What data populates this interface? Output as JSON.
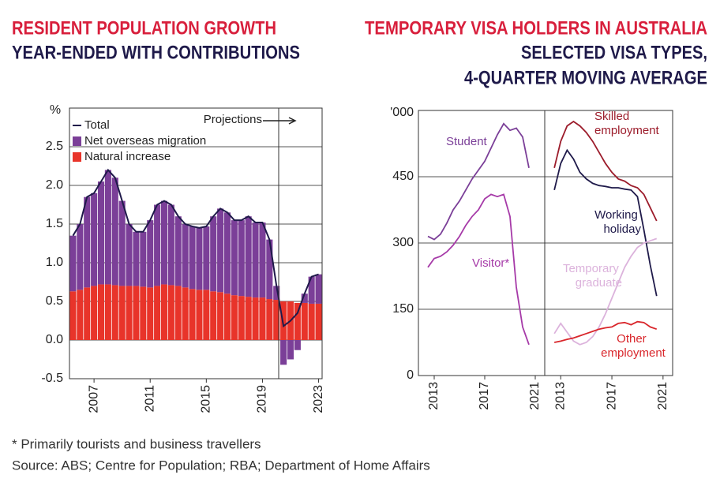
{
  "chart_data": [
    {
      "type": "bar",
      "stacked": true,
      "title": "RESIDENT POPULATION GROWTH",
      "subtitle": "YEAR-ENDED WITH CONTRIBUTIONS",
      "ylabel": "%",
      "annotation": "Projections",
      "legend": "upper left",
      "grid": true,
      "categories": [
        null,
        null,
        null,
        "2007",
        null,
        null,
        null,
        null,
        null,
        null,
        null,
        "2011",
        null,
        null,
        null,
        null,
        null,
        null,
        null,
        "2015",
        null,
        null,
        null,
        null,
        null,
        null,
        null,
        "2019",
        null,
        null,
        null,
        null,
        null,
        null,
        null,
        "2023"
      ],
      "ylim": [
        -0.5,
        3.0
      ],
      "yticks": [
        -0.5,
        {
          "value": 0,
          "label": "0.0"
        },
        0.5,
        {
          "value": 1,
          "label": "1.0"
        },
        1.5,
        {
          "value": 2,
          "label": "2.0"
        },
        2.5
      ],
      "series": [
        {
          "name": "Total",
          "type": "line",
          "color": "#1f1a4a",
          "values": [
            1.35,
            1.5,
            1.85,
            1.9,
            2.05,
            2.2,
            2.1,
            1.8,
            1.5,
            1.4,
            1.4,
            1.55,
            1.75,
            1.8,
            1.75,
            1.6,
            1.5,
            1.47,
            1.45,
            1.47,
            1.6,
            1.7,
            1.65,
            1.55,
            1.55,
            1.6,
            1.52,
            1.52,
            1.3,
            0.7,
            0.18,
            0.25,
            0.35,
            0.6,
            0.82,
            0.85
          ]
        },
        {
          "name": "Net overseas migration",
          "type": "bar",
          "color": "#7b3f98",
          "values": [
            0.72,
            0.85,
            1.17,
            1.2,
            1.33,
            1.48,
            1.39,
            1.1,
            0.8,
            0.7,
            0.71,
            0.87,
            1.05,
            1.08,
            1.04,
            0.9,
            0.82,
            0.81,
            0.8,
            0.82,
            0.97,
            1.08,
            1.05,
            0.97,
            0.98,
            1.04,
            0.97,
            0.97,
            0.77,
            0.18,
            -0.32,
            -0.25,
            -0.13,
            0.12,
            0.35,
            0.38
          ]
        },
        {
          "name": "Natural increase",
          "type": "bar",
          "color": "#e8342a",
          "values": [
            0.63,
            0.65,
            0.68,
            0.7,
            0.72,
            0.72,
            0.71,
            0.7,
            0.7,
            0.7,
            0.69,
            0.68,
            0.7,
            0.72,
            0.71,
            0.7,
            0.68,
            0.66,
            0.65,
            0.65,
            0.63,
            0.62,
            0.6,
            0.58,
            0.57,
            0.56,
            0.55,
            0.55,
            0.53,
            0.52,
            0.5,
            0.5,
            0.48,
            0.48,
            0.47,
            0.47
          ]
        }
      ]
    },
    {
      "type": "line",
      "panels": 2,
      "title": "TEMPORARY VISA HOLDERS IN AUSTRALIA",
      "subtitle": [
        "SELECTED VISA TYPES,",
        "4-QUARTER MOVING AVERAGE"
      ],
      "ylabel": "'000",
      "grid": true,
      "x": [
        2012.5,
        2013,
        2013.5,
        2014,
        2014.5,
        2015,
        2015.5,
        2016,
        2016.5,
        2017,
        2017.5,
        2018,
        2018.5,
        2019,
        2019.5,
        2020,
        2020.5
      ],
      "xlim": [
        2011.75,
        2021.75
      ],
      "xticks": [
        2013,
        2017,
        2021
      ],
      "ylim": [
        0,
        600
      ],
      "yticks": [
        0,
        150,
        300,
        450
      ],
      "series": [
        {
          "name": "Student",
          "panel": 0,
          "color": "#7b3f98",
          "values": [
            315,
            308,
            320,
            345,
            375,
            395,
            420,
            445,
            465,
            485,
            515,
            545,
            570,
            555,
            560,
            540,
            470
          ]
        },
        {
          "name": "Visitor*",
          "panel": 0,
          "color": "#a63aa8",
          "values": [
            245,
            265,
            270,
            280,
            295,
            315,
            340,
            360,
            375,
            400,
            410,
            405,
            410,
            360,
            200,
            110,
            70
          ]
        },
        {
          "name": "Skilled employment",
          "panel": 1,
          "color": "#9c1c2b",
          "values": [
            470,
            530,
            565,
            575,
            565,
            550,
            530,
            505,
            480,
            460,
            445,
            440,
            430,
            425,
            410,
            380,
            350
          ]
        },
        {
          "name": "Working holiday",
          "panel": 1,
          "color": "#1f1a4a",
          "values": [
            420,
            480,
            510,
            490,
            460,
            445,
            435,
            430,
            428,
            425,
            425,
            422,
            420,
            405,
            330,
            250,
            180
          ]
        },
        {
          "name": "Temporary graduate",
          "panel": 1,
          "color": "#dcb3dc",
          "values": [
            95,
            118,
            98,
            78,
            70,
            75,
            88,
            110,
            140,
            175,
            210,
            245,
            270,
            290,
            300,
            305,
            310
          ]
        },
        {
          "name": "Other employment",
          "panel": 1,
          "color": "#d9262b",
          "values": [
            75,
            78,
            82,
            85,
            90,
            95,
            100,
            105,
            108,
            110,
            118,
            120,
            115,
            122,
            120,
            110,
            105
          ]
        }
      ]
    }
  ],
  "footnotes": [
    "* Primarily tourists and business travellers",
    "Source: ABS; Centre for Population; RBA; Department of Home Affairs"
  ]
}
